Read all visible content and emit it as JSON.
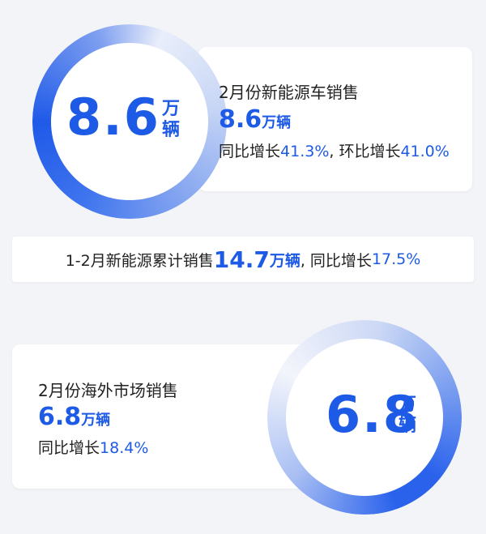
{
  "top": {
    "circle_value": "8.6",
    "circle_unit_1": "万",
    "circle_unit_2": "辆",
    "heading": "2月份新能源车销售",
    "value": "8.6",
    "unit": "万辆",
    "growth": [
      "同比增长",
      "41.3%",
      ", 环比增长",
      "41.0%"
    ]
  },
  "middle": {
    "parts": [
      "1-2月新能源累计销售",
      "14.7",
      "万辆",
      ", 同比增长",
      "17.5%"
    ]
  },
  "bottom": {
    "circle_value": "6.8",
    "circle_unit_1": "万",
    "circle_unit_2": "辆",
    "heading": "2月份海外市场销售",
    "value": "6.8",
    "unit": "万辆",
    "growth": [
      "同比增长",
      "18.4%"
    ]
  }
}
